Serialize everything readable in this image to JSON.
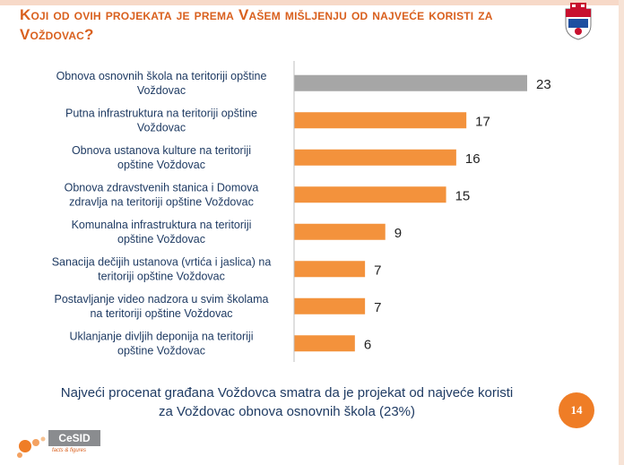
{
  "title": "Koji od ovih projekata je prema Vašem mišljenju od najveće koristi za Voždovac?",
  "summary_line1": "Najveći procenat građana Voždovca smatra da je projekat od najveće koristi",
  "summary_line2": "za Voždovac obnova osnovnih škola (23%)",
  "page_number": "14",
  "logo": {
    "name": "CeSID",
    "tagline": "facts & figures"
  },
  "colors": {
    "highlight_bar": "#a6a6a6",
    "bar": "#f3923c",
    "title": "#d9601e",
    "summary_text": "#1f3b63"
  },
  "chart_data": {
    "type": "bar",
    "orientation": "horizontal",
    "categories": [
      [
        "Obnova osnovnih škola na teritoriji opštine",
        "Voždovac"
      ],
      [
        "Putna infrastruktura na teritoriji opštine",
        "Voždovac"
      ],
      [
        "Obnova ustanova kulture na teritoriji",
        "opštine Voždovac"
      ],
      [
        "Obnova zdravstvenih stanica i Domova",
        "zdravlja na teritoriji opštine Voždovac"
      ],
      [
        "Komunalna infrastruktura na teritoriji",
        "opštine Voždovac"
      ],
      [
        "Sanacija dečijih ustanova (vrtića i jaslica) na",
        "teritoriji opštine Voždovac"
      ],
      [
        "Postavljanje video nadzora u svim školama",
        "na teritoriji opštine Voždovac"
      ],
      [
        "Uklanjanje divljih deponija na teritoriji",
        "opštine Voždovac"
      ]
    ],
    "values": [
      23,
      17,
      16,
      15,
      9,
      7,
      7,
      6
    ],
    "highlight_index": 0,
    "xlim": [
      0,
      23
    ],
    "data_labels": true,
    "gridlines": false,
    "title": "",
    "xlabel": "",
    "ylabel": ""
  }
}
